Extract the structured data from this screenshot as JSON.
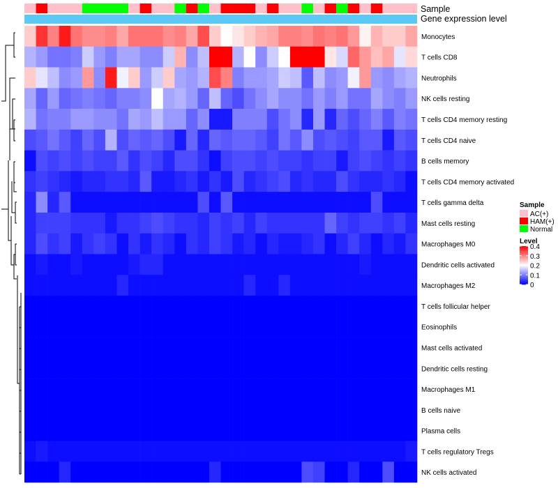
{
  "chart_data": {
    "type": "heatmap",
    "annotation_row_labels": [
      "Sample",
      "Gene expression level"
    ],
    "sample_groups": [
      "AC(+)",
      "HAM(+)",
      "AC(+)",
      "AC(+)",
      "AC(+)",
      "Normal",
      "Normal",
      "Normal",
      "Normal",
      "AC(+)",
      "HAM(+)",
      "AC(+)",
      "AC(+)",
      "Normal",
      "HAM(+)",
      "Normal",
      "AC(+)",
      "HAM(+)",
      "HAM(+)",
      "HAM(+)",
      "AC(+)",
      "HAM(+)",
      "AC(+)",
      "AC(+)",
      "Normal",
      "AC(+)",
      "HAM(+)",
      "Normal",
      "HAM(+)",
      "AC(+)",
      "HAM(+)",
      "AC(+)",
      "AC(+)",
      "AC(+)"
    ],
    "rows": [
      {
        "name": "Monocytes",
        "values": [
          0.24,
          0.36,
          0.3,
          0.38,
          0.31,
          0.29,
          0.29,
          0.3,
          0.27,
          0.31,
          0.31,
          0.31,
          0.29,
          0.3,
          0.27,
          0.34,
          0.24,
          0.2,
          0.22,
          0.24,
          0.26,
          0.27,
          0.3,
          0.3,
          0.29,
          0.31,
          0.3,
          0.31,
          0.28,
          0.21,
          0.26,
          0.24,
          0.24,
          0.27
        ]
      },
      {
        "name": "T cells CD8",
        "values": [
          0.14,
          0.12,
          0.09,
          0.09,
          0.1,
          0.16,
          0.12,
          0.1,
          0.13,
          0.13,
          0.11,
          0.11,
          0.16,
          0.26,
          0.11,
          0.15,
          0.4,
          0.4,
          0.14,
          0.2,
          0.11,
          0.16,
          0.2,
          0.4,
          0.4,
          0.4,
          0.22,
          0.17,
          0.32,
          0.28,
          0.25,
          0.27,
          0.18,
          0.23
        ]
      },
      {
        "name": "Neutrophils",
        "values": [
          0.24,
          0.18,
          0.15,
          0.11,
          0.12,
          0.28,
          0.11,
          0.38,
          0.19,
          0.24,
          0.12,
          0.16,
          0.24,
          0.13,
          0.12,
          0.14,
          0.34,
          0.3,
          0.1,
          0.12,
          0.12,
          0.13,
          0.16,
          0.15,
          0.07,
          0.15,
          0.11,
          0.12,
          0.19,
          0.28,
          0.12,
          0.11,
          0.13,
          0.14
        ]
      },
      {
        "name": "NK cells resting",
        "values": [
          0.13,
          0.08,
          0.12,
          0.08,
          0.09,
          0.1,
          0.09,
          0.08,
          0.1,
          0.1,
          0.11,
          0.2,
          0.13,
          0.14,
          0.12,
          0.08,
          0.15,
          0.08,
          0.06,
          0.09,
          0.11,
          0.13,
          0.11,
          0.11,
          0.09,
          0.12,
          0.1,
          0.12,
          0.09,
          0.09,
          0.13,
          0.11,
          0.1,
          0.12
        ]
      },
      {
        "name": "T cells CD4 memory resting",
        "values": [
          0.14,
          0.09,
          0.1,
          0.1,
          0.12,
          0.12,
          0.11,
          0.11,
          0.09,
          0.13,
          0.12,
          0.15,
          0.12,
          0.12,
          0.08,
          0.11,
          0.02,
          0.02,
          0.1,
          0.1,
          0.1,
          0.06,
          0.09,
          0.11,
          0.03,
          0.12,
          0.03,
          0.08,
          0.06,
          0.08,
          0.1,
          0.07,
          0.1,
          0.09
        ]
      },
      {
        "name": "T cells CD4 naive",
        "values": [
          0.06,
          0.07,
          0.09,
          0.07,
          0.05,
          0.08,
          0.06,
          0.14,
          0.06,
          0.08,
          0.07,
          0.08,
          0.06,
          0.02,
          0.08,
          0.03,
          0.08,
          0.07,
          0.08,
          0.08,
          0.07,
          0.05,
          0.09,
          0.07,
          0.11,
          0.06,
          0.07,
          0.06,
          0.05,
          0.07,
          0.07,
          0.02,
          0.07,
          0.06
        ]
      },
      {
        "name": "B cells memory",
        "values": [
          0.01,
          0.06,
          0.05,
          0.06,
          0.05,
          0.06,
          0.05,
          0.05,
          0.07,
          0.04,
          0.06,
          0.05,
          0.03,
          0.06,
          0.06,
          0.04,
          0.01,
          0.05,
          0.06,
          0.06,
          0.05,
          0.06,
          0.05,
          0.05,
          0.04,
          0.05,
          0.05,
          0.02,
          0.05,
          0.06,
          0.05,
          0.04,
          0.05,
          0.04
        ]
      },
      {
        "name": "T cells CD4 memory activated",
        "values": [
          0.04,
          0.05,
          0.04,
          0.03,
          0.02,
          0.03,
          0.03,
          0.04,
          0.04,
          0.03,
          0.07,
          0.02,
          0.02,
          0.03,
          0.04,
          0.02,
          0.04,
          0.02,
          0.06,
          0.03,
          0.04,
          0.05,
          0.06,
          0.03,
          0.04,
          0.03,
          0.03,
          0.06,
          0.04,
          0.03,
          0.03,
          0.04,
          0.03,
          0.01
        ]
      },
      {
        "name": "T cells gamma delta",
        "values": [
          0.03,
          0.11,
          0.03,
          0.07,
          0.01,
          0.01,
          0.01,
          0.01,
          0.01,
          0.01,
          0.01,
          0.01,
          0.01,
          0.01,
          0.01,
          0.06,
          0.01,
          0.07,
          0.01,
          0.01,
          0.01,
          0.01,
          0.01,
          0.01,
          0.01,
          0.01,
          0.01,
          0.01,
          0.01,
          0.01,
          0.06,
          0.01,
          0.01,
          0.01
        ]
      },
      {
        "name": "Mast cells resting",
        "values": [
          0.03,
          0.05,
          0.05,
          0.05,
          0.04,
          0.04,
          0.04,
          0.02,
          0.04,
          0.04,
          0.05,
          0.06,
          0.05,
          0.04,
          0.04,
          0.03,
          0.05,
          0.04,
          0.05,
          0.03,
          0.05,
          0.04,
          0.04,
          0.04,
          0.04,
          0.04,
          0.08,
          0.05,
          0.04,
          0.05,
          0.05,
          0.04,
          0.05,
          0.03
        ]
      },
      {
        "name": "Macrophages M0",
        "values": [
          0.03,
          0.06,
          0.04,
          0.05,
          0.02,
          0.04,
          0.05,
          0.04,
          0.01,
          0.04,
          0.02,
          0.04,
          0.03,
          0.01,
          0.04,
          0.03,
          0.05,
          0.04,
          0.02,
          0.03,
          0.01,
          0.03,
          0.02,
          0.02,
          0.03,
          0.04,
          0.01,
          0.03,
          0.05,
          0.03,
          0.01,
          0.03,
          0.02,
          0.04
        ]
      },
      {
        "name": "Dendritic cells activated",
        "values": [
          0.01,
          0.02,
          0.01,
          0.01,
          0.02,
          0.01,
          0.01,
          0.01,
          0.01,
          0.02,
          0.03,
          0.03,
          0.01,
          0.01,
          0.01,
          0.01,
          0.01,
          0.01,
          0.01,
          0.01,
          0.01,
          0.01,
          0.01,
          0.01,
          0.01,
          0.01,
          0.01,
          0.01,
          0.01,
          0.02,
          0.01,
          0.01,
          0.01,
          0.01
        ]
      },
      {
        "name": "Macrophages M2",
        "values": [
          0.01,
          0.01,
          0.01,
          0.01,
          0.01,
          0.01,
          0.01,
          0.01,
          0.03,
          0.01,
          0.01,
          0.01,
          0.01,
          0.01,
          0.01,
          0.01,
          0.01,
          0.01,
          0.01,
          0.03,
          0.01,
          0.01,
          0.03,
          0.01,
          0.01,
          0.01,
          0.01,
          0.01,
          0.01,
          0.01,
          0.01,
          0.01,
          0.01,
          0.01
        ]
      },
      {
        "name": "T cells follicular helper",
        "values": [
          0,
          0,
          0,
          0,
          0,
          0,
          0,
          0,
          0,
          0,
          0,
          0,
          0,
          0,
          0,
          0,
          0,
          0,
          0,
          0,
          0,
          0,
          0,
          0,
          0,
          0,
          0,
          0,
          0,
          0,
          0,
          0,
          0,
          0
        ]
      },
      {
        "name": "Eosinophils",
        "values": [
          0,
          0,
          0,
          0,
          0,
          0,
          0,
          0,
          0,
          0,
          0,
          0,
          0,
          0,
          0,
          0,
          0,
          0,
          0,
          0,
          0,
          0,
          0,
          0,
          0,
          0,
          0,
          0,
          0,
          0,
          0,
          0,
          0,
          0
        ]
      },
      {
        "name": "Mast cells activated",
        "values": [
          0,
          0,
          0,
          0,
          0,
          0,
          0,
          0,
          0,
          0,
          0,
          0,
          0,
          0,
          0,
          0,
          0,
          0,
          0,
          0,
          0,
          0,
          0,
          0,
          0,
          0,
          0,
          0,
          0,
          0,
          0,
          0,
          0,
          0
        ]
      },
      {
        "name": "Dendritic cells resting",
        "values": [
          0,
          0,
          0,
          0,
          0,
          0,
          0,
          0,
          0,
          0,
          0,
          0,
          0,
          0,
          0,
          0,
          0,
          0,
          0,
          0,
          0,
          0,
          0,
          0,
          0,
          0,
          0,
          0,
          0,
          0,
          0,
          0,
          0,
          0
        ]
      },
      {
        "name": "Macrophages M1",
        "values": [
          0,
          0,
          0,
          0,
          0,
          0,
          0,
          0,
          0,
          0,
          0,
          0,
          0,
          0,
          0,
          0,
          0,
          0,
          0,
          0,
          0,
          0,
          0,
          0,
          0,
          0,
          0,
          0,
          0,
          0,
          0,
          0,
          0,
          0
        ]
      },
      {
        "name": "B cells naive",
        "values": [
          0,
          0,
          0,
          0,
          0,
          0,
          0,
          0,
          0,
          0,
          0,
          0,
          0,
          0,
          0,
          0,
          0,
          0,
          0,
          0,
          0,
          0,
          0,
          0,
          0,
          0,
          0,
          0,
          0,
          0,
          0,
          0,
          0,
          0
        ]
      },
      {
        "name": "Plasma cells",
        "values": [
          0,
          0,
          0,
          0,
          0,
          0,
          0,
          0,
          0,
          0,
          0,
          0,
          0,
          0,
          0,
          0,
          0,
          0,
          0,
          0,
          0,
          0,
          0,
          0,
          0,
          0,
          0,
          0,
          0,
          0,
          0,
          0,
          0,
          0
        ]
      },
      {
        "name": "T cells regulatory  Tregs",
        "values": [
          0.01,
          0.02,
          0.01,
          0.01,
          0.01,
          0.01,
          0.01,
          0.01,
          0.01,
          0.01,
          0.01,
          0.01,
          0.01,
          0.01,
          0.01,
          0.01,
          0.01,
          0.01,
          0.01,
          0.01,
          0.01,
          0.01,
          0.01,
          0.01,
          0.01,
          0.01,
          0.01,
          0.01,
          0.01,
          0.01,
          0.01,
          0.01,
          0.01,
          0.02
        ]
      },
      {
        "name": "NK cells activated",
        "values": [
          0,
          0,
          0,
          0.03,
          0,
          0,
          0,
          0,
          0,
          0,
          0,
          0,
          0,
          0,
          0,
          0,
          0.03,
          0,
          0,
          0,
          0,
          0,
          0,
          0,
          0.06,
          0.05,
          0,
          0,
          0.03,
          0,
          0,
          0.06,
          0,
          0
        ]
      }
    ],
    "legend_sample": {
      "title": "Sample",
      "entries": [
        {
          "label": "AC(+)",
          "color": "#ffc0cb"
        },
        {
          "label": "HAM(+)",
          "color": "#ff0000"
        },
        {
          "label": "Normal",
          "color": "#00ff00"
        }
      ]
    },
    "legend_level": {
      "title": "Level",
      "ticks": [
        "0.4",
        "0.3",
        "0.2",
        "0.1",
        "0"
      ],
      "range": [
        0,
        0.4
      ]
    },
    "expression_bar_color": "#5bc8f5",
    "color_scale": {
      "low": "#0000ff",
      "mid": "#ffffff",
      "high": "#ff0000",
      "midpoint": 0.2
    }
  }
}
